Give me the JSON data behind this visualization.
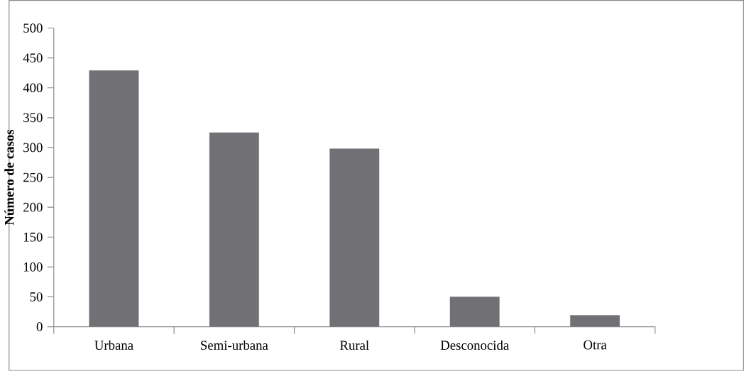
{
  "chart_data": {
    "type": "bar",
    "ylabel": "Número de casos",
    "categories": [
      "Urbana",
      "Semi-urbana",
      "Rural",
      "Desconocida",
      "Otra"
    ],
    "values": [
      429,
      325,
      298,
      50,
      19
    ],
    "color": "#717074",
    "ylim": [
      0,
      500
    ],
    "yticks": [
      0,
      50,
      100,
      150,
      200,
      250,
      300,
      350,
      400,
      450,
      500
    ],
    "grid": false
  }
}
